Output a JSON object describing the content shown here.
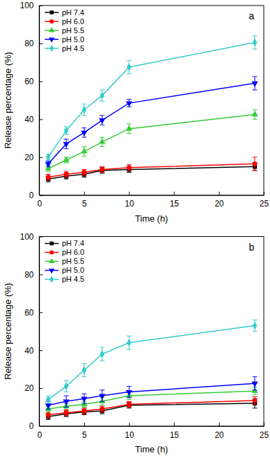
{
  "chart_data": [
    {
      "type": "line",
      "annotations": [
        "a"
      ],
      "x_label": "Time (h)",
      "y_label": "Release percentage (%)",
      "x": [
        1,
        3,
        5,
        7,
        10,
        24
      ],
      "xlim": [
        0,
        25
      ],
      "xticks": [
        0,
        5,
        10,
        15,
        20,
        25
      ],
      "ylim": [
        0,
        100
      ],
      "yticks": [
        0,
        20,
        40,
        60,
        80,
        100
      ],
      "legend": "upper left",
      "series": [
        {
          "name": "pH 7.4",
          "color": "#000000",
          "marker": "square",
          "values": [
            8.5,
            10,
            11,
            13,
            13.5,
            15
          ],
          "errors": [
            1.5,
            1.5,
            1.5,
            1.5,
            1.5,
            2
          ]
        },
        {
          "name": "pH 6.0",
          "color": "#ff0000",
          "marker": "circle",
          "values": [
            9.5,
            11,
            12,
            13.5,
            14.5,
            16.5
          ],
          "errors": [
            1.5,
            1.5,
            1.5,
            1.5,
            1.5,
            3.5
          ]
        },
        {
          "name": "pH 5.5",
          "color": "#33cc33",
          "marker": "triangle-up",
          "values": [
            14,
            18.5,
            23,
            28,
            35,
            42.5
          ],
          "errors": [
            1.5,
            1.5,
            2.5,
            2.5,
            2.5,
            2.5
          ]
        },
        {
          "name": "pH 5.0",
          "color": "#0000ff",
          "marker": "triangle-down",
          "values": [
            16.5,
            27,
            33,
            39.5,
            48.5,
            59
          ],
          "errors": [
            1.5,
            2.5,
            2.5,
            2.5,
            2,
            3.5
          ]
        },
        {
          "name": "pH 4.5",
          "color": "#33cccc",
          "marker": "diamond",
          "values": [
            20,
            34,
            45,
            52.5,
            67.5,
            80.5
          ],
          "errors": [
            1.5,
            2,
            3,
            3,
            3.5,
            3.5
          ]
        }
      ]
    },
    {
      "type": "line",
      "annotations": [
        "b"
      ],
      "x_label": "Time (h)",
      "y_label": "Release percentage (%)",
      "x": [
        1,
        3,
        5,
        7,
        10,
        24
      ],
      "xlim": [
        0,
        25
      ],
      "xticks": [
        0,
        5,
        10,
        15,
        20,
        25
      ],
      "ylim": [
        0,
        100
      ],
      "yticks": [
        0,
        20,
        40,
        60,
        80,
        100
      ],
      "legend": "upper left",
      "series": [
        {
          "name": "pH 7.4",
          "color": "#000000",
          "marker": "square",
          "values": [
            5,
            6.5,
            7.5,
            8,
            11,
            12
          ],
          "errors": [
            1.5,
            1.5,
            1.5,
            1.5,
            1.5,
            2.5
          ]
        },
        {
          "name": "pH 6.0",
          "color": "#ff0000",
          "marker": "circle",
          "values": [
            6,
            7,
            8,
            9,
            11.5,
            13.5
          ],
          "errors": [
            1.5,
            1.5,
            1.5,
            1.5,
            1.5,
            2
          ]
        },
        {
          "name": "pH 5.5",
          "color": "#33cc33",
          "marker": "triangle-up",
          "values": [
            9,
            10.5,
            11.5,
            13,
            16,
            18.5
          ],
          "errors": [
            1.5,
            1.5,
            1.5,
            2,
            2,
            2
          ]
        },
        {
          "name": "pH 5.0",
          "color": "#0000ff",
          "marker": "triangle-down",
          "values": [
            11,
            13,
            14.5,
            16,
            18,
            22.5
          ],
          "errors": [
            2,
            3,
            2.5,
            3,
            3,
            3.5
          ]
        },
        {
          "name": "pH 4.5",
          "color": "#33cccc",
          "marker": "diamond",
          "values": [
            14,
            21,
            29.5,
            38,
            44,
            53
          ],
          "errors": [
            2,
            3,
            3.5,
            3.5,
            3.5,
            3
          ]
        }
      ]
    }
  ]
}
